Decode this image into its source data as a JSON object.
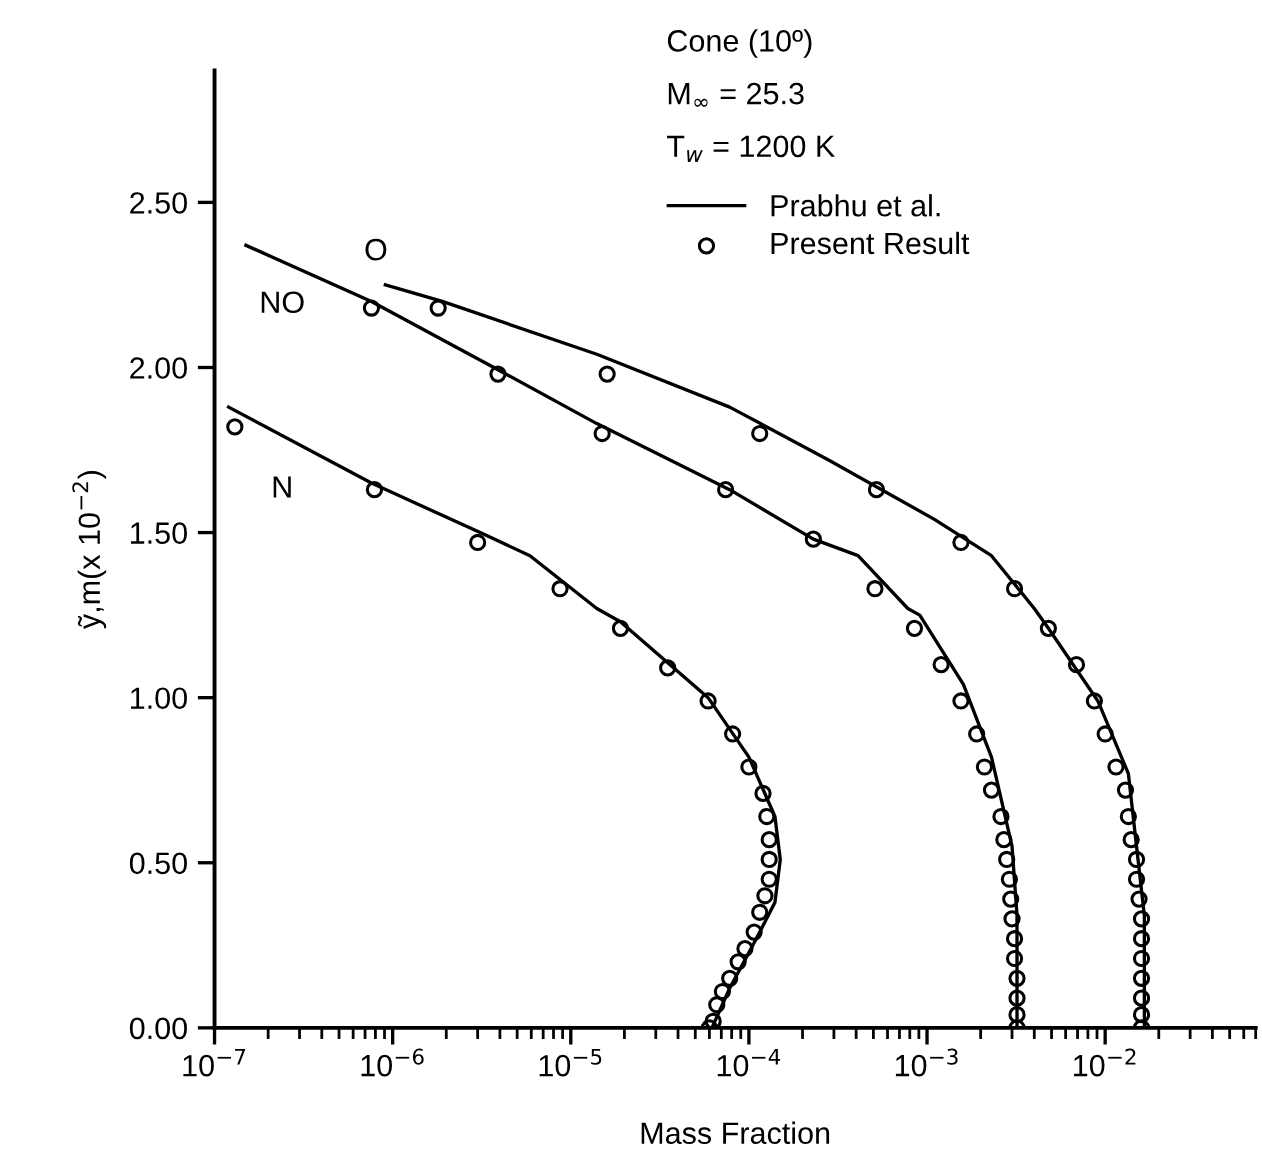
{
  "chart_data": {
    "type": "line",
    "xlabel": "Mass Fraction",
    "ylabel": "ỹ,m(x 10$^{−2}$)",
    "log": "x",
    "xlim": [
      1e-07,
      0.07
    ],
    "ylim": [
      0,
      2.9
    ],
    "xticks": [
      {
        "value": 1e-07,
        "label": "10$^{−7}$"
      },
      {
        "value": 1e-06,
        "label": "10$^{−6}$"
      },
      {
        "value": 1e-05,
        "label": "10$^{−5}$"
      },
      {
        "value": 0.0001,
        "label": "10$^{−4}$"
      },
      {
        "value": 0.001,
        "label": "10$^{−3}$"
      },
      {
        "value": 0.01,
        "label": "10$^{−2}$"
      }
    ],
    "yticks": [
      {
        "value": 0,
        "label": "0.00"
      },
      {
        "value": 0.5,
        "label": "0.50"
      },
      {
        "value": 1,
        "label": "1.00"
      },
      {
        "value": 1.5,
        "label": "1.50"
      },
      {
        "value": 2,
        "label": "2.00"
      },
      {
        "value": 2.5,
        "label": "2.50"
      }
    ],
    "grid": false,
    "legend": "top right",
    "annotations": [
      "Cone (10º)",
      "M$_{∞}$ = 25.3",
      "T$_{w}$ = 1200 K",
      "NO",
      "N",
      "O"
    ],
    "series": [
      {
        "name": "Prabhu et al.",
        "color": "#000000",
        "marker": "none",
        "line_style": "solid",
        "x": [
          1.2e-07,
          7.6e-07,
          3.1e-06,
          5.9e-06,
          1.4e-05,
          1.9e-05,
          5.9e-05,
          0.0001,
          0.00014,
          0.00015,
          0.00014,
          0.00011,
          7.8e-05,
          6.2e-05
        ],
        "values": [
          1.88,
          1.65,
          1.5,
          1.43,
          1.27,
          1.23,
          1.0,
          0.82,
          0.64,
          0.51,
          0.38,
          0.27,
          0.12,
          0
        ]
      },
      {
        "color": "#000000",
        "marker": "none",
        "line_style": "solid",
        "x": [
          1.5e-07,
          7.6e-07,
          3.7e-06,
          1.4e-05,
          7.8e-05,
          0.00023,
          0.00041,
          0.00078,
          0.00091,
          0.0016,
          0.0023,
          0.003,
          0.0032,
          0.0032
        ],
        "values": [
          2.37,
          2.2,
          2.0,
          1.83,
          1.63,
          1.48,
          1.43,
          1.27,
          1.25,
          1.04,
          0.82,
          0.55,
          0.34,
          0
        ]
      },
      {
        "color": "#000000",
        "marker": "none",
        "line_style": "solid",
        "x": [
          9.1e-07,
          1.9e-06,
          1.4e-05,
          7.8e-05,
          0.00028,
          0.0011,
          0.0023,
          0.004,
          0.0048,
          0.0091,
          0.0135,
          0.015,
          0.0166,
          0.0166
        ],
        "values": [
          2.25,
          2.2,
          2.04,
          1.88,
          1.72,
          1.54,
          1.43,
          1.27,
          1.21,
          0.99,
          0.77,
          0.55,
          0.34,
          0
        ]
      },
      {
        "name": "Present Result",
        "type": "scatter",
        "color": "#000000",
        "marker": "circle",
        "x": [
          1.3e-07,
          7.9e-07,
          3e-06,
          8.7e-06,
          1.9e-05,
          3.5e-05,
          5.9e-05,
          8.1e-05,
          0.0001,
          0.00012,
          0.000126,
          0.00013,
          0.00013,
          0.00013,
          0.000123,
          0.000115,
          0.000107,
          9.5e-05,
          8.7e-05,
          7.8e-05,
          7.1e-05,
          6.6e-05,
          6.3e-05,
          6e-05
        ],
        "values": [
          1.82,
          1.63,
          1.47,
          1.33,
          1.21,
          1.09,
          0.99,
          0.89,
          0.79,
          0.71,
          0.64,
          0.57,
          0.51,
          0.45,
          0.4,
          0.35,
          0.29,
          0.24,
          0.2,
          0.15,
          0.11,
          0.07,
          0.02,
          0.0
        ]
      },
      {
        "type": "scatter",
        "color": "#000000",
        "marker": "circle",
        "x": [
          7.6e-07,
          3.9e-06,
          1.5e-05,
          7.4e-05,
          0.00023,
          0.00051,
          0.00085,
          0.0012,
          0.00155,
          0.0019,
          0.0021,
          0.0023,
          0.0026,
          0.0027,
          0.0028,
          0.0029,
          0.00295,
          0.003,
          0.0031,
          0.0031,
          0.0032,
          0.0032,
          0.0032,
          0.0032
        ],
        "values": [
          2.18,
          1.98,
          1.8,
          1.63,
          1.48,
          1.33,
          1.21,
          1.1,
          0.99,
          0.89,
          0.79,
          0.72,
          0.64,
          0.57,
          0.51,
          0.45,
          0.39,
          0.33,
          0.27,
          0.21,
          0.15,
          0.09,
          0.04,
          0.0
        ]
      },
      {
        "type": "scatter",
        "color": "#000000",
        "marker": "circle",
        "x": [
          1.8e-06,
          1.6e-05,
          0.000115,
          0.00052,
          0.00155,
          0.0031,
          0.0048,
          0.0069,
          0.0087,
          0.01,
          0.0115,
          0.013,
          0.0135,
          0.014,
          0.015,
          0.015,
          0.0155,
          0.016,
          0.016,
          0.016,
          0.016,
          0.016,
          0.016,
          0.016
        ],
        "values": [
          2.18,
          1.98,
          1.8,
          1.63,
          1.47,
          1.33,
          1.21,
          1.1,
          0.99,
          0.89,
          0.79,
          0.72,
          0.64,
          0.57,
          0.51,
          0.45,
          0.39,
          0.33,
          0.27,
          0.21,
          0.15,
          0.09,
          0.04,
          0.0
        ]
      }
    ]
  }
}
